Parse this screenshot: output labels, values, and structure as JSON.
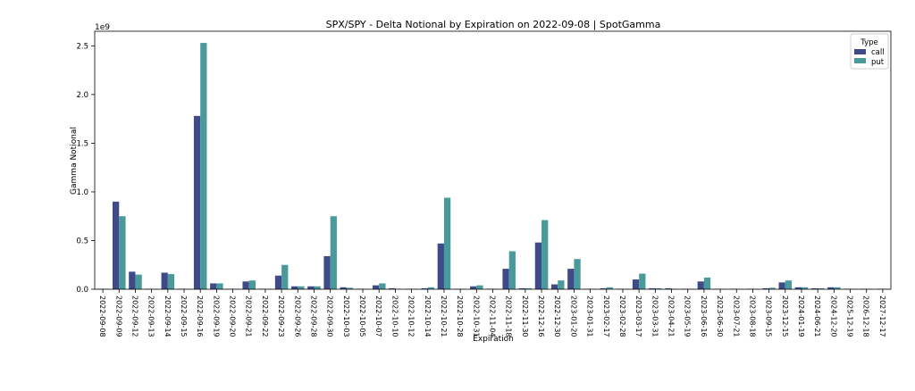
{
  "chart_data": {
    "type": "bar",
    "title": "SPX/SPY - Delta Notional by Expiration on 2022-09-08 | SpotGamma",
    "xlabel": "Expiration",
    "ylabel": "Gamma Notional",
    "y_multiplier": "1e9",
    "ylim": [
      0,
      2.65
    ],
    "yticks": [
      "0.0",
      "0.5",
      "1.0",
      "1.5",
      "2.0",
      "2.5"
    ],
    "ytick_values": [
      0,
      0.5,
      1.0,
      1.5,
      2.0,
      2.5
    ],
    "legend": {
      "title": "Type",
      "placement": "top-right"
    },
    "categories": [
      "2022-09-08",
      "2022-09-09",
      "2022-09-12",
      "2022-09-13",
      "2022-09-14",
      "2022-09-15",
      "2022-09-16",
      "2022-09-19",
      "2022-09-20",
      "2022-09-21",
      "2022-09-22",
      "2022-09-23",
      "2022-09-26",
      "2022-09-28",
      "2022-09-30",
      "2022-10-03",
      "2022-10-05",
      "2022-10-07",
      "2022-10-10",
      "2022-10-12",
      "2022-10-14",
      "2022-10-21",
      "2022-10-28",
      "2022-10-31",
      "2022-11-04",
      "2022-11-18",
      "2022-11-30",
      "2022-12-16",
      "2022-12-30",
      "2023-01-20",
      "2023-01-31",
      "2023-02-17",
      "2023-02-28",
      "2023-03-17",
      "2023-03-31",
      "2023-04-21",
      "2023-05-19",
      "2023-06-16",
      "2023-06-30",
      "2023-07-21",
      "2023-08-18",
      "2023-09-15",
      "2023-12-15",
      "2024-01-19",
      "2024-06-21",
      "2024-12-20",
      "2025-12-19",
      "2026-12-18",
      "2027-12-17"
    ],
    "series": [
      {
        "name": "call",
        "color": "#3f4a89",
        "values": [
          0.005,
          0.9,
          0.18,
          0.005,
          0.17,
          0.005,
          1.78,
          0.06,
          0.005,
          0.08,
          0.005,
          0.14,
          0.03,
          0.03,
          0.34,
          0.02,
          0.005,
          0.04,
          0.01,
          0.005,
          0.01,
          0.47,
          0.005,
          0.03,
          0.005,
          0.21,
          0.01,
          0.48,
          0.05,
          0.21,
          0.005,
          0.01,
          0.005,
          0.1,
          0.01,
          0.01,
          0.005,
          0.08,
          0.005,
          0.005,
          0.005,
          0.01,
          0.07,
          0.02,
          0.01,
          0.02,
          0.005,
          0.005,
          0.005
        ]
      },
      {
        "name": "put",
        "color": "#4a9a9c",
        "values": [
          0.005,
          0.75,
          0.15,
          0.005,
          0.155,
          0.005,
          2.53,
          0.06,
          0.005,
          0.09,
          0.005,
          0.25,
          0.03,
          0.03,
          0.75,
          0.015,
          0.005,
          0.06,
          0.005,
          0.005,
          0.02,
          0.94,
          0.005,
          0.04,
          0.005,
          0.39,
          0.01,
          0.71,
          0.09,
          0.31,
          0.005,
          0.02,
          0.005,
          0.16,
          0.01,
          0.005,
          0.005,
          0.12,
          0.005,
          0.005,
          0.005,
          0.015,
          0.09,
          0.02,
          0.01,
          0.02,
          0.005,
          0.005,
          0.005
        ]
      }
    ]
  }
}
